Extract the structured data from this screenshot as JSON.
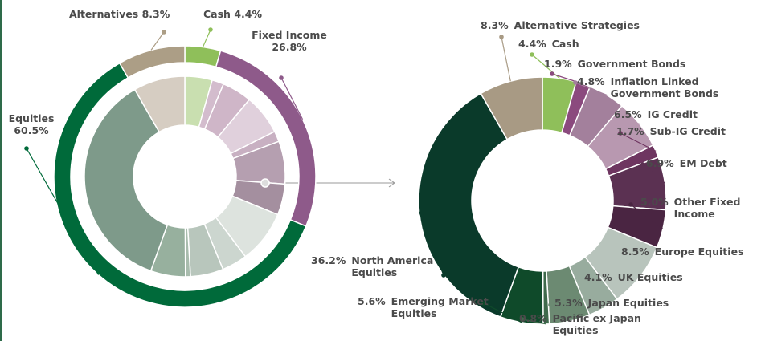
{
  "chart_data": [
    {
      "type": "donut",
      "categories": [
        "Cash",
        "Fixed Income",
        "Equities",
        "Alternatives"
      ],
      "values": [
        4.4,
        26.8,
        60.5,
        8.3
      ],
      "value_labels": [
        "4.4%",
        "26.8%",
        "60.5%",
        "8.3%"
      ],
      "colors": [
        "#8fbf5a",
        "#8e5a8a",
        "#006a3a",
        "#ac9e86"
      ],
      "inner_colors": [
        "#c9dfb0",
        "#d3bccd",
        "#cfb6c8",
        "#e0d0dc",
        "#c8b0c2",
        "#b59fb0",
        "#a48f9f",
        "#dde3de",
        "#ccd6cf",
        "#b8c6bc",
        "#a8bcad",
        "#97b09e",
        "#7e9a8a",
        "#d6cdc2"
      ]
    },
    {
      "type": "donut",
      "categories": [
        "Cash",
        "Government Bonds",
        "Inflation Linked Government Bonds",
        "IG Credit",
        "Sub-IG Credit",
        "EM Debt",
        "Other Fixed Income",
        "Europe Equities",
        "UK Equities",
        "Japan Equities",
        "Pacific ex Japan Equities",
        "Emerging Market Equities",
        "North America Equities",
        "Alternative Strategies"
      ],
      "values": [
        4.4,
        1.9,
        4.8,
        6.5,
        1.7,
        6.9,
        5.0,
        8.5,
        4.1,
        5.3,
        0.8,
        5.6,
        36.2,
        8.3
      ],
      "value_labels": [
        "4.4%",
        "1.9%",
        "4.8%",
        "6.5%",
        "1.7%",
        "6.9%",
        "5.0%",
        "8.5%",
        "4.1%",
        "5.3%",
        "0.8%",
        "5.6%",
        "36.2%",
        "8.3%"
      ],
      "colors": [
        "#8fbf5a",
        "#8b4a7e",
        "#a3809c",
        "#b898b0",
        "#6e3560",
        "#5b3152",
        "#4a2542",
        "#b8c4bc",
        "#98ac9e",
        "#6c8a72",
        "#3f6a4c",
        "#0f4a2a",
        "#0a3a2a",
        "#a89a84"
      ]
    }
  ]
}
